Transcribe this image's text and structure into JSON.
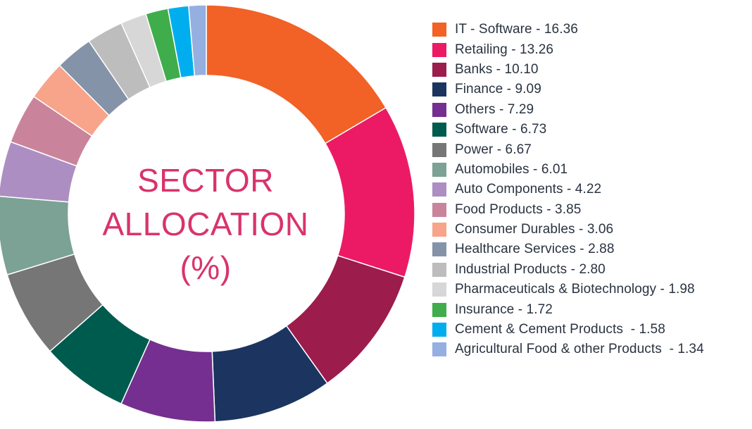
{
  "chart_data": {
    "type": "pie",
    "variant": "donut",
    "title": [
      "SECTOR",
      "ALLOCATION",
      "(%)"
    ],
    "legend_position": "right",
    "slices": [
      {
        "name": "IT - Software",
        "value": 16.36,
        "color": "#f26125",
        "legend_label": "IT - Software - 16.36"
      },
      {
        "name": "Retailing",
        "value": 13.26,
        "color": "#ec1a64",
        "legend_label": "Retailing - 13.26"
      },
      {
        "name": "Banks",
        "value": 10.1,
        "color": "#9c1c4c",
        "legend_label": "Banks - 10.10"
      },
      {
        "name": "Finance",
        "value": 9.09,
        "color": "#1b3560",
        "legend_label": "Finance - 9.09"
      },
      {
        "name": "Others",
        "value": 7.29,
        "color": "#742f90",
        "legend_label": "Others - 7.29"
      },
      {
        "name": "Software",
        "value": 6.73,
        "color": "#005b4f",
        "legend_label": "Software - 6.73"
      },
      {
        "name": "Power",
        "value": 6.67,
        "color": "#767676",
        "legend_label": "Power - 6.67"
      },
      {
        "name": "Automobiles",
        "value": 6.01,
        "color": "#7ba295",
        "legend_label": "Automobiles - 6.01"
      },
      {
        "name": "Auto Components",
        "value": 4.22,
        "color": "#ad8ec3",
        "legend_label": "Auto Components - 4.22"
      },
      {
        "name": "Food Products",
        "value": 3.85,
        "color": "#c9849b",
        "legend_label": "Food Products - 3.85"
      },
      {
        "name": "Consumer Durables",
        "value": 3.06,
        "color": "#f7a48b",
        "legend_label": "Consumer Durables - 3.06"
      },
      {
        "name": "Healthcare Services",
        "value": 2.88,
        "color": "#8593a8",
        "legend_label": "Healthcare Services - 2.88"
      },
      {
        "name": "Industrial Products",
        "value": 2.8,
        "color": "#bdbdbd",
        "legend_label": "Industrial Products - 2.80"
      },
      {
        "name": "Pharmaceuticals & Biotechnology",
        "value": 1.98,
        "color": "#d7d7d7",
        "legend_label": "Pharmaceuticals & Biotechnology - 1.98"
      },
      {
        "name": "Insurance",
        "value": 1.72,
        "color": "#3fad4b",
        "legend_label": "Insurance - 1.72"
      },
      {
        "name": "Cement & Cement Products",
        "value": 1.58,
        "color": "#00aeef",
        "legend_label": "Cement & Cement Products  - 1.58"
      },
      {
        "name": "Agricultural Food & other Products",
        "value": 1.34,
        "color": "#95afe0",
        "legend_label": "Agricultural Food & other Products  - 1.34"
      }
    ]
  }
}
